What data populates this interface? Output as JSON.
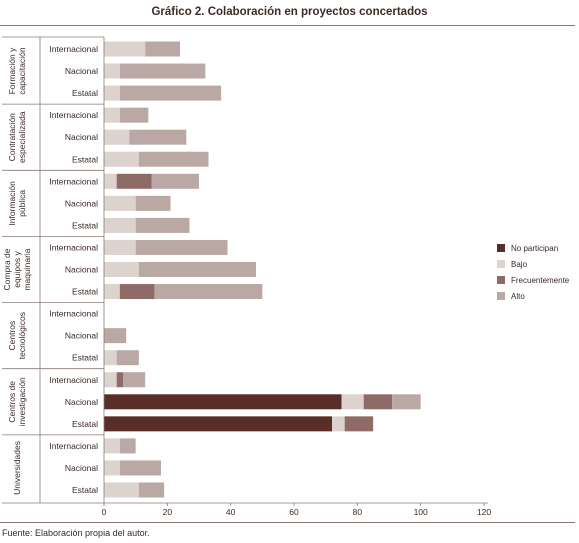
{
  "title": "Gráfico 2. Colaboración en proyectos concertados",
  "source": "Fuente: Elaboración propia del autor.",
  "chart_data": {
    "type": "bar",
    "orientation": "horizontal",
    "stacked": true,
    "title": "Gráfico 2. Colaboración en proyectos concertados",
    "xlim": [
      0,
      120
    ],
    "xticks": [
      0,
      20,
      40,
      60,
      80,
      100,
      120
    ],
    "legend_position": "right",
    "series": [
      {
        "name": "No participan",
        "color": "#5a2e28"
      },
      {
        "name": "Bajo",
        "color": "#dcd2ce"
      },
      {
        "name": "Frecuentemente",
        "color": "#8e6b66"
      },
      {
        "name": "Alto",
        "color": "#b9a8a3"
      }
    ],
    "groups": [
      {
        "label": "Formación y capacitación",
        "rows": [
          {
            "label": "Internacional",
            "values": [
              0,
              13,
              0,
              11
            ]
          },
          {
            "label": "Nacional",
            "values": [
              0,
              5,
              0,
              27
            ]
          },
          {
            "label": "Estatal",
            "values": [
              0,
              5,
              0,
              32
            ]
          }
        ]
      },
      {
        "label": "Contratación especializada",
        "rows": [
          {
            "label": "Internacional",
            "values": [
              0,
              5,
              0,
              9
            ]
          },
          {
            "label": "Nacional",
            "values": [
              0,
              8,
              0,
              18
            ]
          },
          {
            "label": "Estatal",
            "values": [
              0,
              11,
              0,
              22
            ]
          }
        ]
      },
      {
        "label": "Información pública",
        "rows": [
          {
            "label": "Internacional",
            "values": [
              0,
              4,
              11,
              15
            ]
          },
          {
            "label": "Nacional",
            "values": [
              0,
              10,
              0,
              11
            ]
          },
          {
            "label": "Estatal",
            "values": [
              0,
              10,
              0,
              17
            ]
          }
        ]
      },
      {
        "label": "Compra de equipos y maquinaria",
        "rows": [
          {
            "label": "Internacional",
            "values": [
              0,
              10,
              0,
              29
            ]
          },
          {
            "label": "Nacional",
            "values": [
              0,
              11,
              0,
              37
            ]
          },
          {
            "label": "Estatal",
            "values": [
              0,
              5,
              11,
              34
            ]
          }
        ]
      },
      {
        "label": "Centros tecnológicos",
        "rows": [
          {
            "label": "Internacional",
            "values": [
              0,
              0,
              0,
              0
            ]
          },
          {
            "label": "Nacional",
            "values": [
              0,
              0,
              0,
              7
            ]
          },
          {
            "label": "Estatal",
            "values": [
              0,
              4,
              0,
              7
            ]
          }
        ]
      },
      {
        "label": "Centros de investigación",
        "rows": [
          {
            "label": "Internacional",
            "values": [
              0,
              4,
              2,
              7
            ]
          },
          {
            "label": "Nacional",
            "values": [
              75,
              7,
              9,
              9
            ]
          },
          {
            "label": "Estatal",
            "values": [
              72,
              4,
              9,
              0
            ]
          }
        ]
      },
      {
        "label": "Universidades",
        "rows": [
          {
            "label": "Internacional",
            "values": [
              0,
              5,
              0,
              5
            ]
          },
          {
            "label": "Nacional",
            "values": [
              0,
              5,
              0,
              13
            ]
          },
          {
            "label": "Estatal",
            "values": [
              0,
              11,
              0,
              8
            ]
          }
        ]
      }
    ]
  }
}
